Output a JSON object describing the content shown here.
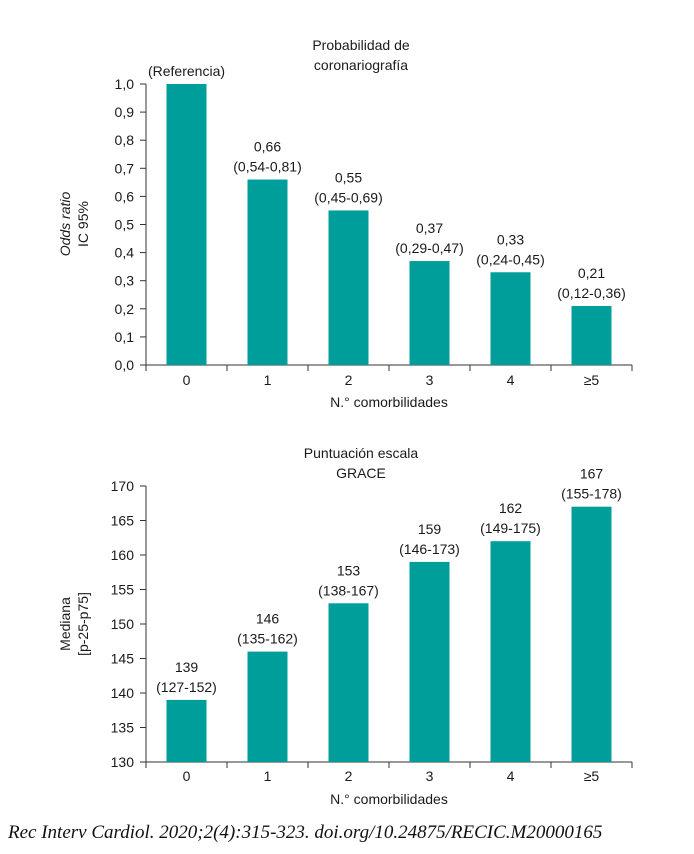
{
  "chart_data": [
    {
      "type": "bar",
      "title_lines": [
        "Probabilidad de",
        "coronariografía"
      ],
      "ylabel_lines": [
        "Odds ratio",
        "IC 95%"
      ],
      "xlabel": "N.° comorbilidades",
      "categories": [
        "0",
        "1",
        "2",
        "3",
        "4",
        "≥5"
      ],
      "values": [
        1.0,
        0.66,
        0.55,
        0.37,
        0.33,
        0.21
      ],
      "bar_labels": [
        [
          "(Referencia)"
        ],
        [
          "0,66",
          "(0,54-0,81)"
        ],
        [
          "0,55",
          "(0,45-0,69)"
        ],
        [
          "0,37",
          "(0,29-0,47)"
        ],
        [
          "0,33",
          "(0,24-0,45)"
        ],
        [
          "0,21",
          "(0,12-0,36)"
        ]
      ],
      "yticks": [
        "0,0",
        "0,1",
        "0,2",
        "0,3",
        "0,4",
        "0,5",
        "0,6",
        "0,7",
        "0,8",
        "0,9",
        "1,0"
      ],
      "ylim": [
        0,
        1.0
      ],
      "bar_color": "#009e9a",
      "grid": false
    },
    {
      "type": "bar",
      "title_lines": [
        "Puntuación escala",
        "GRACE"
      ],
      "ylabel_lines": [
        "Mediana",
        "[p-25-p75]"
      ],
      "xlabel": "N.° comorbilidades",
      "categories": [
        "0",
        "1",
        "2",
        "3",
        "4",
        "≥5"
      ],
      "values": [
        139,
        146,
        153,
        159,
        162,
        167
      ],
      "bar_labels": [
        [
          "139",
          "(127-152)"
        ],
        [
          "146",
          "(135-162)"
        ],
        [
          "153",
          "(138-167)"
        ],
        [
          "159",
          "(146-173)"
        ],
        [
          "162",
          "(149-175)"
        ],
        [
          "167",
          "(155-178)"
        ]
      ],
      "yticks": [
        "130",
        "135",
        "140",
        "145",
        "150",
        "155",
        "160",
        "165",
        "170"
      ],
      "ylim": [
        130,
        170
      ],
      "bar_color": "#009e9a",
      "grid": false
    }
  ],
  "citation": "Rec Interv Cardiol. 2020;2(4):315-323. doi.org/10.24875/RECIC.M20000165"
}
